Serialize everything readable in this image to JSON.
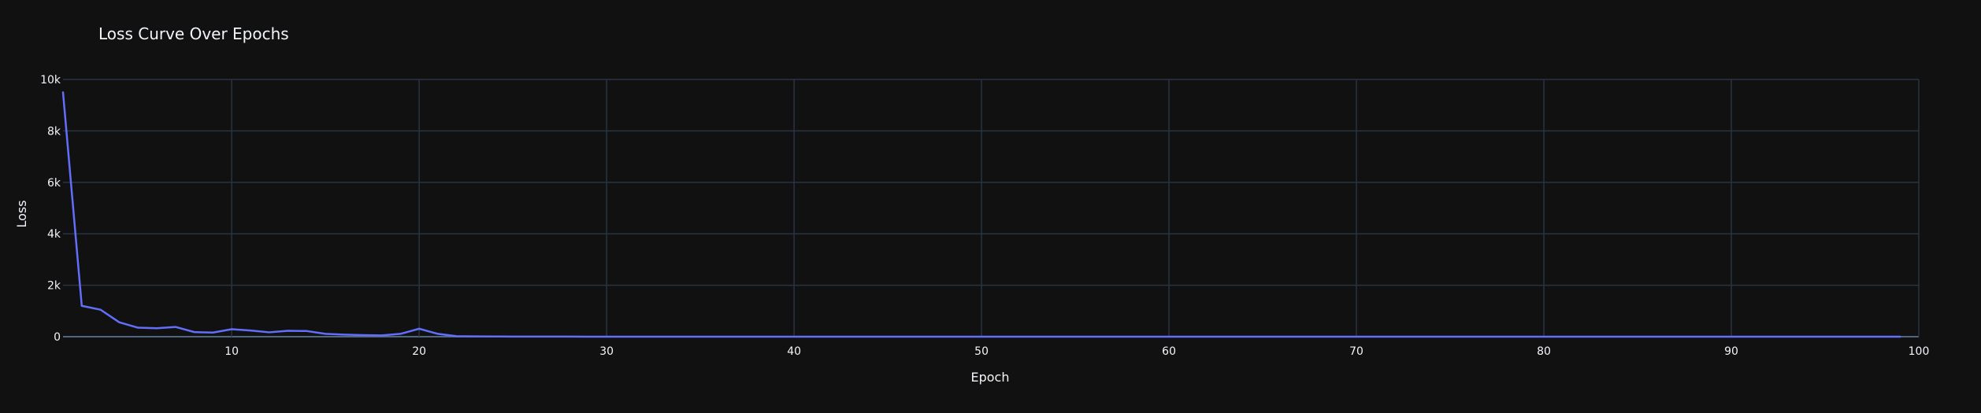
{
  "chart_data": {
    "type": "line",
    "title": "Loss Curve Over Epochs",
    "xlabel": "Epoch",
    "ylabel": "Loss",
    "xlim": [
      1,
      100
    ],
    "ylim": [
      0,
      10000
    ],
    "x_ticks": [
      10,
      20,
      30,
      40,
      50,
      60,
      70,
      80,
      90,
      100
    ],
    "x_tick_labels": [
      "10",
      "20",
      "30",
      "40",
      "50",
      "60",
      "70",
      "80",
      "90",
      "100"
    ],
    "y_ticks": [
      0,
      2000,
      4000,
      6000,
      8000,
      10000
    ],
    "y_tick_labels": [
      "0",
      "2k",
      "4k",
      "6k",
      "8k",
      "10k"
    ],
    "grid": true,
    "legend": "none",
    "colors": {
      "background": "#111111",
      "line": "#636efa",
      "grid": "#283442",
      "zero_line": "#506784",
      "text": "#f2f5fa"
    },
    "series": [
      {
        "x": [
          1,
          2,
          3,
          4,
          5,
          6,
          7,
          8,
          9,
          10,
          11,
          12,
          13,
          14,
          15,
          16,
          17,
          18,
          19,
          20,
          21,
          22,
          23,
          24,
          25,
          26,
          27,
          28,
          29,
          30,
          31,
          32,
          33,
          34,
          35,
          36,
          37,
          38,
          39,
          40,
          41,
          42,
          43,
          44,
          45,
          46,
          47,
          48,
          49,
          50,
          51,
          52,
          53,
          54,
          55,
          56,
          57,
          58,
          59,
          60,
          61,
          62,
          63,
          64,
          65,
          66,
          67,
          68,
          69,
          70,
          71,
          72,
          73,
          74,
          75,
          76,
          77,
          78,
          79,
          80,
          81,
          82,
          83,
          84,
          85,
          86,
          87,
          88,
          89,
          90,
          91,
          92,
          93,
          94,
          95,
          96,
          97,
          98,
          99
        ],
        "values": [
          9500,
          1200,
          1050,
          560,
          350,
          330,
          380,
          180,
          160,
          290,
          240,
          170,
          230,
          220,
          110,
          80,
          60,
          50,
          110,
          310,
          110,
          20,
          10,
          8,
          5,
          3,
          2,
          2,
          1,
          1,
          1,
          1,
          1,
          1,
          1,
          1,
          1,
          1,
          1,
          1,
          1,
          1,
          1,
          1,
          1,
          1,
          1,
          1,
          1,
          1,
          1,
          1,
          1,
          1,
          1,
          1,
          1,
          1,
          1,
          1,
          1,
          1,
          1,
          1,
          1,
          1,
          1,
          1,
          1,
          1,
          1,
          1,
          1,
          1,
          1,
          1,
          1,
          1,
          1,
          1,
          1,
          1,
          1,
          1,
          1,
          1,
          1,
          1,
          1,
          1,
          1,
          1,
          1,
          1,
          1,
          1,
          1,
          1,
          1
        ]
      }
    ]
  }
}
